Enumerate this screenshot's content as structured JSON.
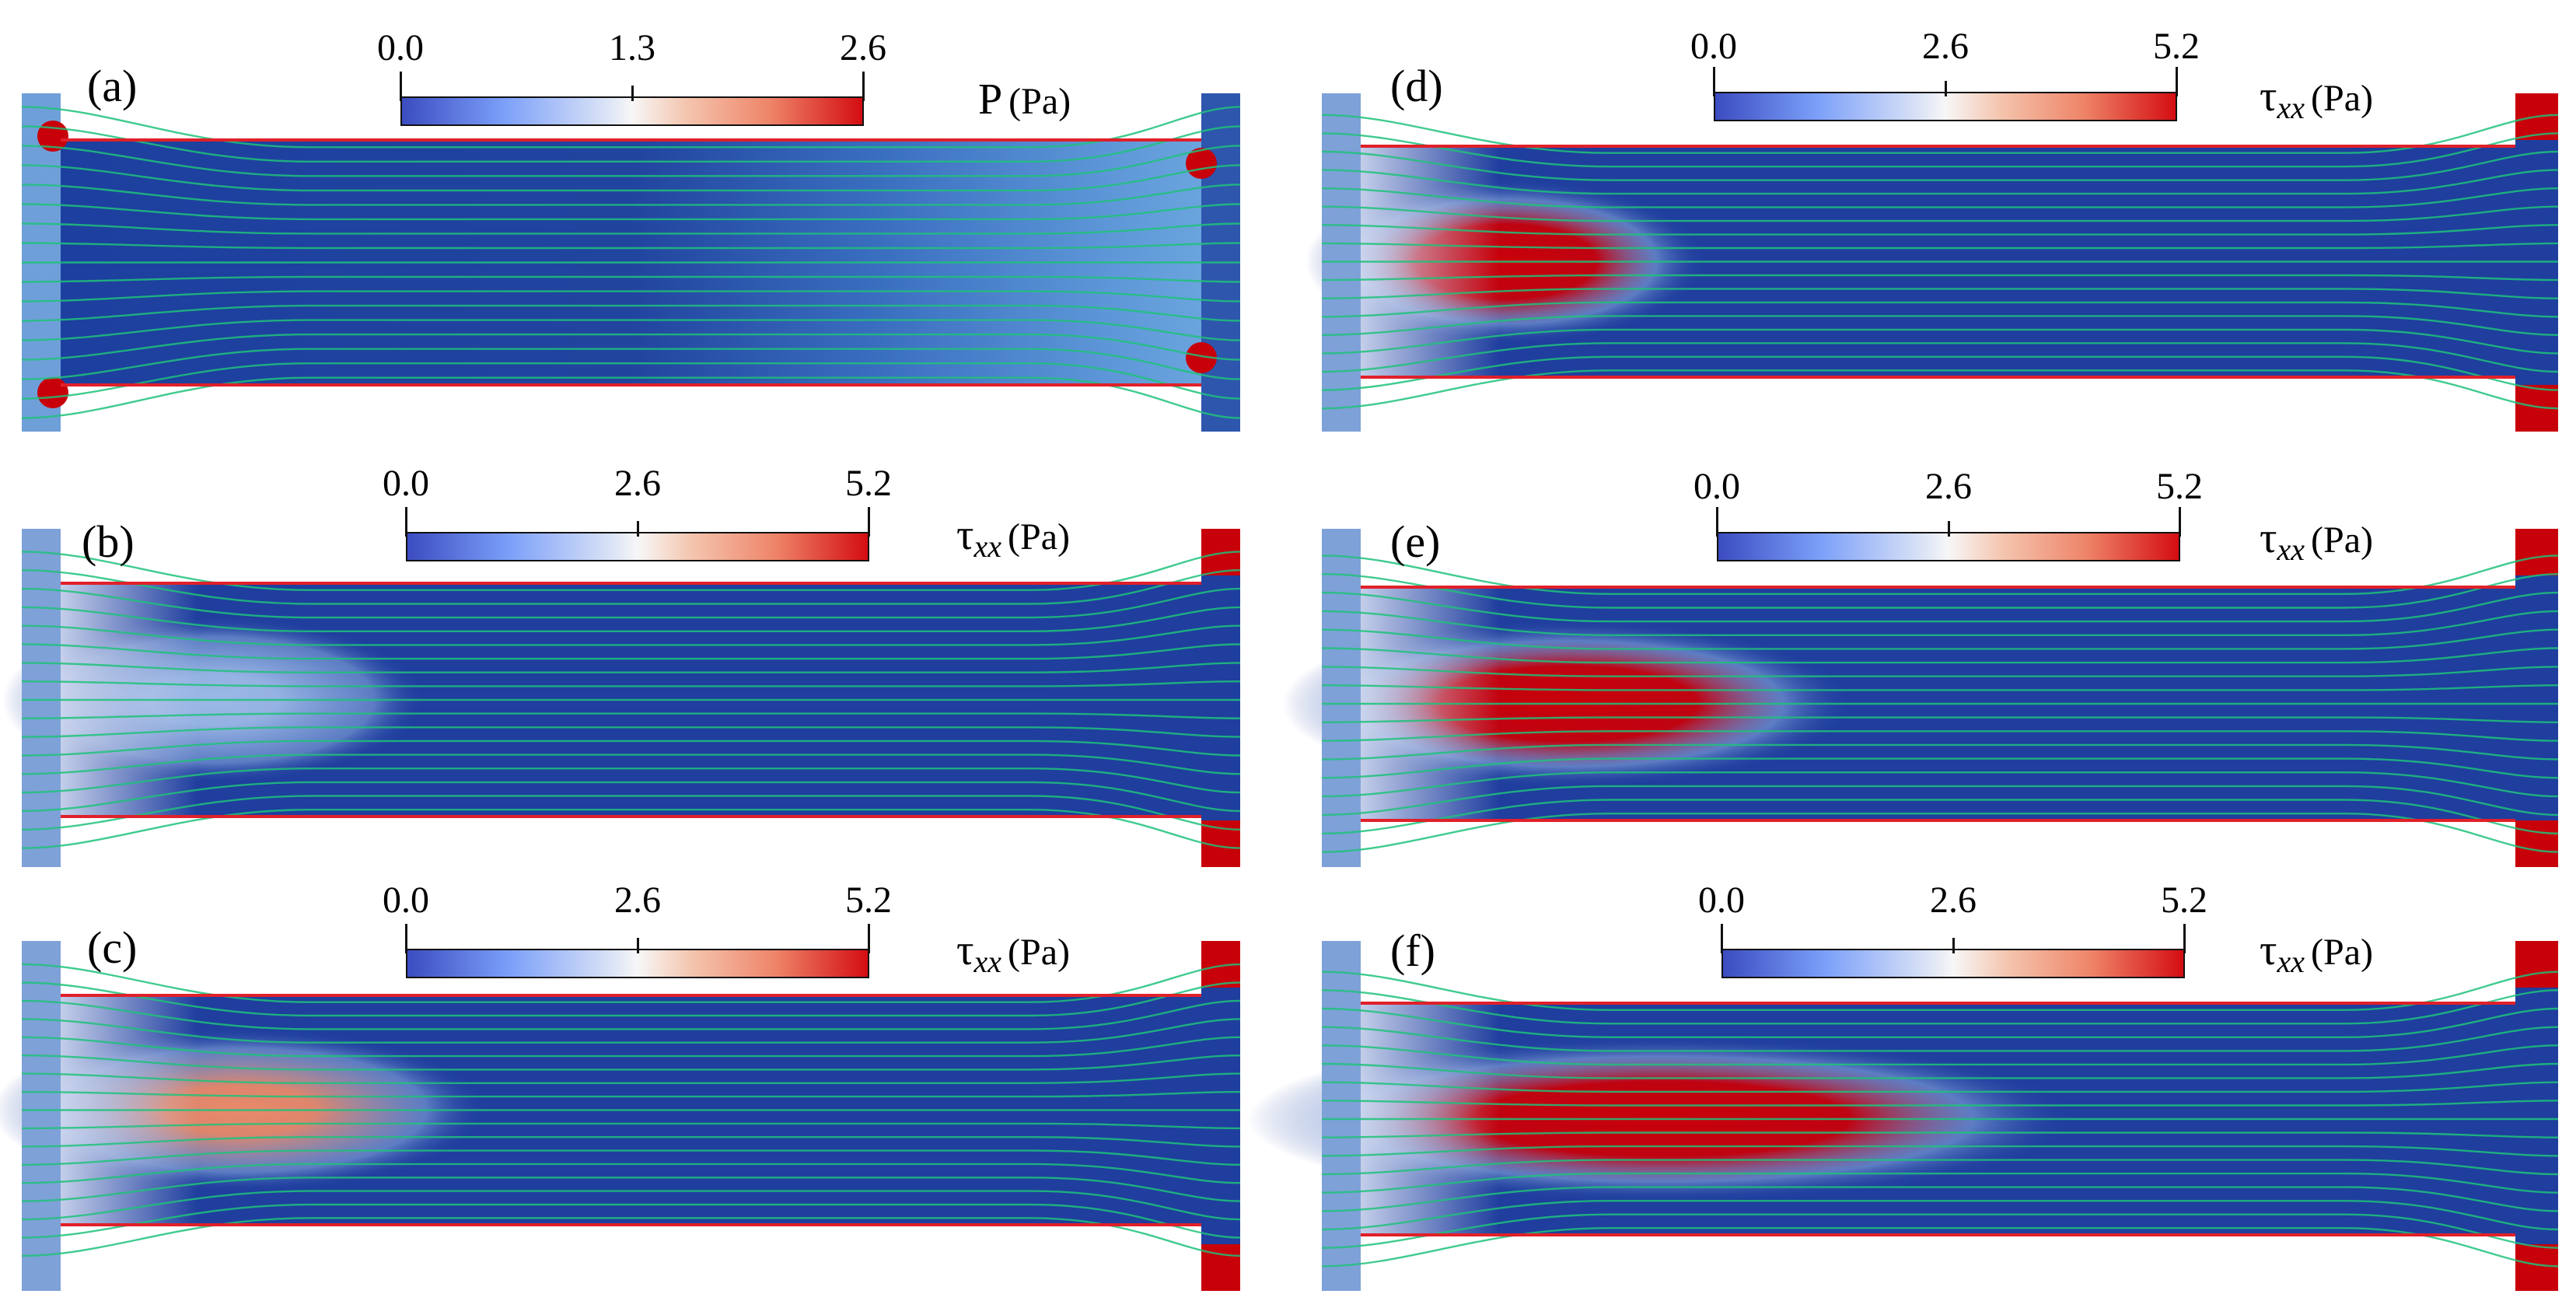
{
  "panels": [
    {
      "id": "a",
      "label": "(a)",
      "quantity": "P",
      "subscript": "",
      "unit": "(Pa)",
      "ticks": [
        "0.0",
        "1.3",
        "2.6"
      ],
      "field": "pressure"
    },
    {
      "id": "b",
      "label": "(b)",
      "quantity": "τ",
      "subscript": "xx",
      "unit": "(Pa)",
      "ticks": [
        "0.0",
        "2.6",
        "5.2"
      ],
      "field": "stress",
      "blob_intensity": 0.25,
      "blob_length": 0.3
    },
    {
      "id": "c",
      "label": "(c)",
      "quantity": "τ",
      "subscript": "xx",
      "unit": "(Pa)",
      "ticks": [
        "0.0",
        "2.6",
        "5.2"
      ],
      "field": "stress",
      "blob_intensity": 0.55,
      "blob_length": 0.35
    },
    {
      "id": "d",
      "label": "(d)",
      "quantity": "τ",
      "subscript": "xx",
      "unit": "(Pa)",
      "ticks": [
        "0.0",
        "2.6",
        "5.2"
      ],
      "field": "stress",
      "blob_intensity": 0.95,
      "blob_length": 0.28
    },
    {
      "id": "e",
      "label": "(e)",
      "quantity": "τ",
      "subscript": "xx",
      "unit": "(Pa)",
      "ticks": [
        "0.0",
        "2.6",
        "5.2"
      ],
      "field": "stress",
      "blob_intensity": 1.0,
      "blob_length": 0.4
    },
    {
      "id": "f",
      "label": "(f)",
      "quantity": "τ",
      "subscript": "xx",
      "unit": "(Pa)",
      "ticks": [
        "0.0",
        "2.6",
        "5.2"
      ],
      "field": "stress",
      "blob_intensity": 1.0,
      "blob_length": 0.58
    }
  ],
  "colors": {
    "low": "#1f3e9e",
    "mid": "#dde5f6",
    "high": "#c8000a",
    "streamline": "#1fc27a",
    "wall": "#e0202a"
  }
}
